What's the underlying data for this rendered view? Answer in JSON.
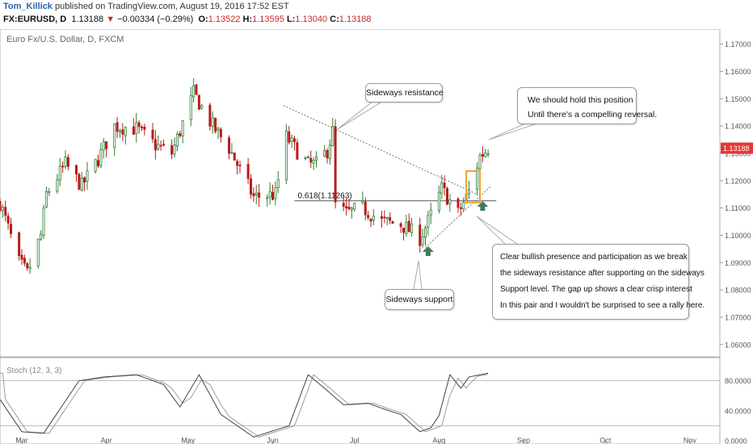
{
  "header": {
    "author": "Tom_Killick",
    "published": "published on TradingView.com, August 19, 2016 17:52 EST",
    "symbol": "FX:EURUSD, D",
    "last": "1.13188",
    "change": "−0.00334 (−0.29%)",
    "open_label": "O:",
    "open": "1.13522",
    "high_label": "H:",
    "high": "1.13595",
    "low_label": "L:",
    "low": "1.13040",
    "close_label": "C:",
    "close": "1.13188"
  },
  "chart_title": "Euro Fx/U.S. Dollar, D, FXCM",
  "colors": {
    "up": "#2e7d32",
    "down": "#b71c1c",
    "marker": "#3d7a5b",
    "box": "#f0a030",
    "price_tag": "#e53935"
  },
  "chart_data": {
    "type": "candlestick",
    "xlim": [
      "2016-02-22",
      "2016-11-12"
    ],
    "ylim": [
      1.0555,
      1.1755
    ],
    "x_ticks": [
      "Mar",
      "Apr",
      "May",
      "Jun",
      "Jul",
      "Aug",
      "Sep",
      "Oct",
      "Nov"
    ],
    "x_tick_dates": [
      "2016-03-01",
      "2016-04-01",
      "2016-05-01",
      "2016-06-01",
      "2016-07-01",
      "2016-08-01",
      "2016-09-01",
      "2016-10-01",
      "2016-11-01"
    ],
    "y_ticks": [
      "1.17000",
      "1.16000",
      "1.15000",
      "1.14000",
      "1.13000",
      "1.12000",
      "1.11000",
      "1.10000",
      "1.09000",
      "1.08000",
      "1.07000",
      "1.06000"
    ],
    "last_price_label": "1.13188",
    "anchors": [
      [
        "2016-02-22",
        1.112
      ],
      [
        "2016-02-29",
        1.09
      ],
      [
        "2016-03-03",
        1.086
      ],
      [
        "2016-03-08",
        1.1
      ],
      [
        "2016-03-10",
        1.115
      ],
      [
        "2016-03-17",
        1.126
      ],
      [
        "2016-03-23",
        1.118
      ],
      [
        "2016-03-29",
        1.128
      ],
      [
        "2016-04-04",
        1.14
      ],
      [
        "2016-04-12",
        1.139
      ],
      [
        "2016-04-19",
        1.133
      ],
      [
        "2016-04-25",
        1.13
      ],
      [
        "2016-05-03",
        1.152
      ],
      [
        "2016-05-10",
        1.14
      ],
      [
        "2016-05-16",
        1.132
      ],
      [
        "2016-05-25",
        1.114
      ],
      [
        "2016-06-02",
        1.115
      ],
      [
        "2016-06-06",
        1.136
      ],
      [
        "2016-06-09",
        1.132
      ],
      [
        "2016-06-14",
        1.126
      ],
      [
        "2016-06-17",
        1.126
      ],
      [
        "2016-06-21",
        1.131
      ],
      [
        "2016-06-23",
        1.138
      ],
      [
        "2016-06-24",
        1.111
      ],
      [
        "2016-06-28",
        1.108
      ],
      [
        "2016-07-04",
        1.11
      ],
      [
        "2016-07-11",
        1.105
      ],
      [
        "2016-07-18",
        1.104
      ],
      [
        "2016-07-25",
        1.099
      ],
      [
        "2016-07-28",
        1.105
      ],
      [
        "2016-08-02",
        1.117
      ],
      [
        "2016-08-08",
        1.108
      ],
      [
        "2016-08-12",
        1.116
      ],
      [
        "2016-08-16",
        1.129
      ],
      [
        "2016-08-19",
        1.1319
      ]
    ],
    "stoch_series": [
      {
        "name": "Stoch (12, 3, 3)",
        "anchors": [
          [
            "2016-02-22",
            55
          ],
          [
            "2016-03-01",
            12
          ],
          [
            "2016-03-09",
            10
          ],
          [
            "2016-03-22",
            80
          ],
          [
            "2016-03-31",
            85
          ],
          [
            "2016-04-12",
            88
          ],
          [
            "2016-04-22",
            75
          ],
          [
            "2016-04-28",
            45
          ],
          [
            "2016-05-05",
            88
          ],
          [
            "2016-05-13",
            35
          ],
          [
            "2016-05-25",
            5
          ],
          [
            "2016-06-07",
            20
          ],
          [
            "2016-06-14",
            88
          ],
          [
            "2016-06-20",
            70
          ],
          [
            "2016-06-27",
            48
          ],
          [
            "2016-07-06",
            50
          ],
          [
            "2016-07-12",
            42
          ],
          [
            "2016-07-18",
            35
          ],
          [
            "2016-07-25",
            12
          ],
          [
            "2016-07-31",
            20
          ],
          [
            "2016-08-05",
            88
          ],
          [
            "2016-08-09",
            70
          ],
          [
            "2016-08-12",
            85
          ],
          [
            "2016-08-19",
            90
          ]
        ]
      }
    ],
    "stoch_ylim": [
      0,
      100
    ],
    "stoch_ticks": [
      "80.0000",
      "40.0000",
      "0.0000"
    ],
    "stoch_levels": [
      80,
      20
    ],
    "fib": {
      "label": "0.618(1.11263)",
      "price": 1.11263,
      "from": "2016-06-09",
      "to": "2016-08-22"
    },
    "resistance_line": [
      [
        "2016-06-05",
        1.1475
      ],
      [
        "2016-08-15",
        1.115
      ]
    ],
    "support_line": [
      [
        "2016-07-27",
        1.0955
      ],
      [
        "2016-08-20",
        1.118
      ]
    ]
  },
  "annotations": {
    "sideways_resistance": "Sideways resistance",
    "sideways_support": "Sideways support",
    "hold": [
      "We should hold this position",
      "Until there's a compelling reversal."
    ],
    "bullish": [
      "Clear bullish presence and participation as we break",
      "the sideways resistance after supporting on the sideways",
      "Support level. The gap up shows a clear crisp interest",
      "In this pair and I wouldn't be surprised to see a rally here."
    ]
  }
}
